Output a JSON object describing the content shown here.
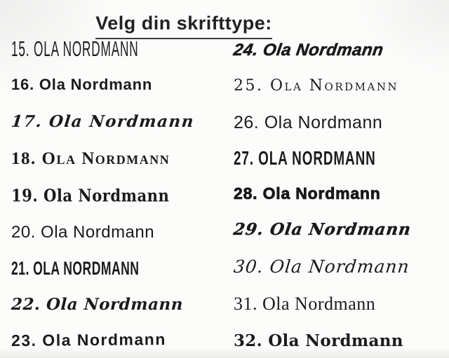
{
  "title": {
    "text": "Velg din skrifttype:"
  },
  "sample_name": "Ola Nordmann",
  "colors": {
    "text": "#1b1b1b",
    "background": "#fcfcfb",
    "underline": "#3a3a3a"
  },
  "columns": {
    "left": {
      "items": [
        {
          "label": "15. Ola Nordmann",
          "font_style": "tall-condensed-handwritten-caps"
        },
        {
          "label": "16. Ola Nordmann",
          "font_style": "bold-rounded-sans"
        },
        {
          "label": "17. Ola Nordmann",
          "font_style": "italic-handwritten-script"
        },
        {
          "label": "18. Ola Nordmann",
          "font_style": "small-caps-serif"
        },
        {
          "label": "19. Ola Nordmann",
          "font_style": "blackletter-semi"
        },
        {
          "label": "20. Ola Nordmann",
          "font_style": "rounded-casual-sans"
        },
        {
          "label": "21. Ola Nordmann",
          "font_style": "condensed-display-caps"
        },
        {
          "label": "22. Ola Nordmann",
          "font_style": "fraktur-blackletter"
        },
        {
          "label": "23. Ola Nordmann",
          "font_style": "playful-marker"
        }
      ]
    },
    "right": {
      "items": [
        {
          "label": "24. Ola Nordmann",
          "font_style": "bold-brush-script"
        },
        {
          "label": "25. Ola Nordmann",
          "font_style": "celtic-uncial"
        },
        {
          "label": "26. Ola Nordmann",
          "font_style": "clean-sans"
        },
        {
          "label": "27. Ola Nordmann",
          "font_style": "condensed-caps-sans"
        },
        {
          "label": "28. Ola Nordmann",
          "font_style": "heavy-black-sans"
        },
        {
          "label": "29. Ola Nordmann",
          "font_style": "bold-italic-script"
        },
        {
          "label": "30. Ola Nordmann",
          "font_style": "elegant-flowing-script"
        },
        {
          "label": "31. Ola Nordmann",
          "font_style": "light-classic-serif"
        },
        {
          "label": "32. Ola Nordmann",
          "font_style": "bold-round-serif"
        }
      ]
    }
  }
}
